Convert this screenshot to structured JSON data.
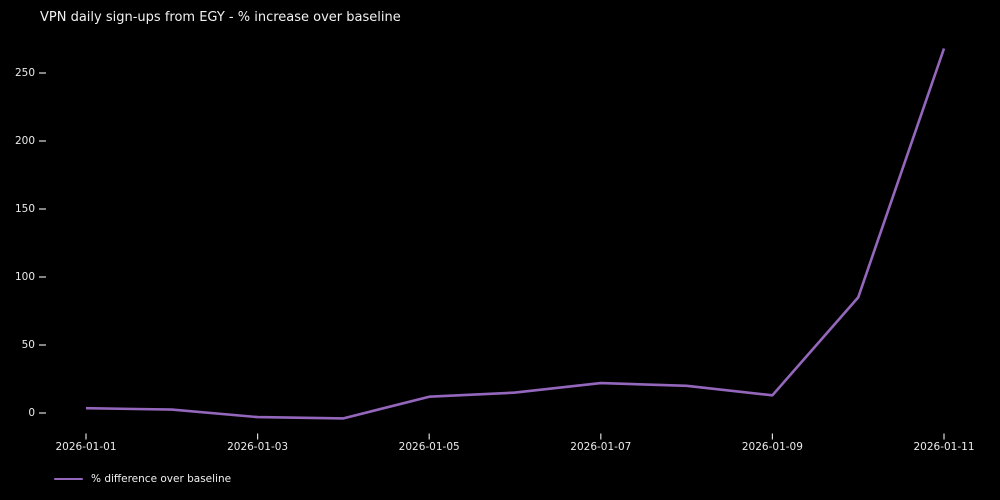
{
  "chart": {
    "background_color": "#000000",
    "text_color": "#f1f1f1",
    "tick_color": "#dcdcdc",
    "line_color": "#9467bd"
  },
  "chart_data": {
    "type": "line",
    "title": "VPN daily sign-ups from EGY - % increase over baseline",
    "xlabel": "",
    "ylabel": "",
    "x": [
      "2026-01-01",
      "2026-01-02",
      "2026-01-03",
      "2026-01-04",
      "2026-01-05",
      "2026-01-06",
      "2026-01-07",
      "2026-01-08",
      "2026-01-09",
      "2026-01-10",
      "2026-01-11"
    ],
    "series": [
      {
        "name": "% difference over baseline",
        "color": "#9467bd",
        "values": [
          3.5,
          2.5,
          -3,
          -4,
          12,
          15,
          22,
          20,
          13,
          85,
          268
        ]
      }
    ],
    "y_ticks": [
      0,
      50,
      100,
      150,
      200,
      250
    ],
    "x_tick_labels": [
      "2026-01-01",
      "2026-01-03",
      "2026-01-05",
      "2026-01-07",
      "2026-01-09",
      "2026-01-11"
    ],
    "ylim": [
      -18,
      282
    ],
    "grid": false,
    "legend_position": "lower left"
  }
}
